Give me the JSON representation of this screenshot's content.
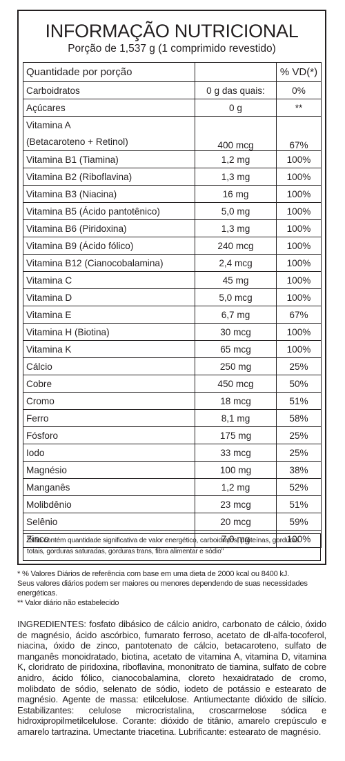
{
  "label": {
    "title": "INFORMAÇÃO NUTRICIONAL",
    "portion": "Porção de 1,537 g (1 comprimido revestido)",
    "header": {
      "quantity": "Quantidade por porção",
      "dv": "% VD(*)"
    },
    "rows": [
      {
        "name": "Carboidratos",
        "amount": "0 g das quais:",
        "dv": "0%"
      },
      {
        "name": "Açúcares",
        "amount": "0 g",
        "dv": "**"
      },
      {
        "name": "Vitamina A",
        "name2": "(Betacaroteno + Retinol)",
        "amount": "400 mcg",
        "dv": "67%"
      },
      {
        "name": "Vitamina B1 (Tiamina)",
        "amount": "1,2 mg",
        "dv": "100%"
      },
      {
        "name": "Vitamina B2 (Riboflavina)",
        "amount": "1,3 mg",
        "dv": "100%"
      },
      {
        "name": "Vitamina B3 (Niacina)",
        "amount": "16 mg",
        "dv": "100%"
      },
      {
        "name": "Vitamina B5 (Ácido pantotênico)",
        "amount": "5,0 mg",
        "dv": "100%"
      },
      {
        "name": "Vitamina B6 (Piridoxina)",
        "amount": "1,3 mg",
        "dv": "100%"
      },
      {
        "name": "Vitamina B9 (Ácido fólico)",
        "amount": "240 mcg",
        "dv": "100%"
      },
      {
        "name": "Vitamina B12 (Cianocobalamina)",
        "amount": "2,4 mcg",
        "dv": "100%"
      },
      {
        "name": "Vitamina C",
        "amount": "45 mg",
        "dv": "100%"
      },
      {
        "name": "Vitamina D",
        "amount": "5,0 mcg",
        "dv": "100%"
      },
      {
        "name": "Vitamina E",
        "amount": "6,7 mg",
        "dv": "67%"
      },
      {
        "name": "Vitamina H (Biotina)",
        "amount": "30 mcg",
        "dv": "100%"
      },
      {
        "name": "Vitamina K",
        "amount": "65 mcg",
        "dv": "100%"
      },
      {
        "name": "Cálcio",
        "amount": "250 mg",
        "dv": "25%"
      },
      {
        "name": "Cobre",
        "amount": "450 mcg",
        "dv": "50%"
      },
      {
        "name": "Cromo",
        "amount": "18 mcg",
        "dv": "51%"
      },
      {
        "name": "Ferro",
        "amount": "8,1 mg",
        "dv": "58%"
      },
      {
        "name": "Fósforo",
        "amount": "175 mg",
        "dv": "25%"
      },
      {
        "name": "Iodo",
        "amount": "33 mcg",
        "dv": "25%"
      },
      {
        "name": "Magnésio",
        "amount": "100 mg",
        "dv": "38%"
      },
      {
        "name": "Manganês",
        "amount": "1,2 mg",
        "dv": "52%"
      },
      {
        "name": "Molibdênio",
        "amount": "23 mcg",
        "dv": "51%"
      },
      {
        "name": "Selênio",
        "amount": "20 mcg",
        "dv": "59%"
      },
      {
        "name": "Zinco",
        "amount": "7,0 mg",
        "dv": "100%"
      }
    ],
    "footnote": "\"Não contém quantidade significativa de valor energético, carboidratos, proteínas, gorduras totais, gorduras saturadas, gorduras trans, fibra alimentar e sódio\""
  },
  "notes": {
    "dv_reference": "* % Valores Diários de referência com base em uma dieta de 2000 kcal ou 8400 kJ.",
    "variation": "Seus valores diários podem ser maiores ou menores dependendo de suas necessidades energéticas.",
    "not_established": "** Valor diário não estabelecido"
  },
  "ingredients": "INGREDIENTES: fosfato dibásico de cálcio anidro, carbonato de cálcio, óxido de magnésio, ácido ascórbico, fumarato ferroso, acetato de dl-alfa-tocoferol, niacina, óxido de zinco, pantotenato de cálcio, betacaroteno, sulfato de manganês monoidratado, biotina, acetato de vitamina A, vitamina D, vitamina K, cloridrato de piridoxina, riboflavina, mononitrato de tiamina, sulfato de cobre anidro, ácido fólico, cianocobalamina, cloreto hexaidratado de cromo, molibdato de sódio, selenato de sódio, iodeto de potássio e estearato de magnésio. Agente de massa: etilcelulose. Antiumectante dióxido de silício. Estabilizantes: celulose microcristalina, croscarmelose sódica e hidroxipropilmetilcelulose. Corante: dióxido de titânio, amarelo crepúsculo e amarelo tartrazina. Umectante triacetina. Lubrificante: estearato de magnésio."
}
